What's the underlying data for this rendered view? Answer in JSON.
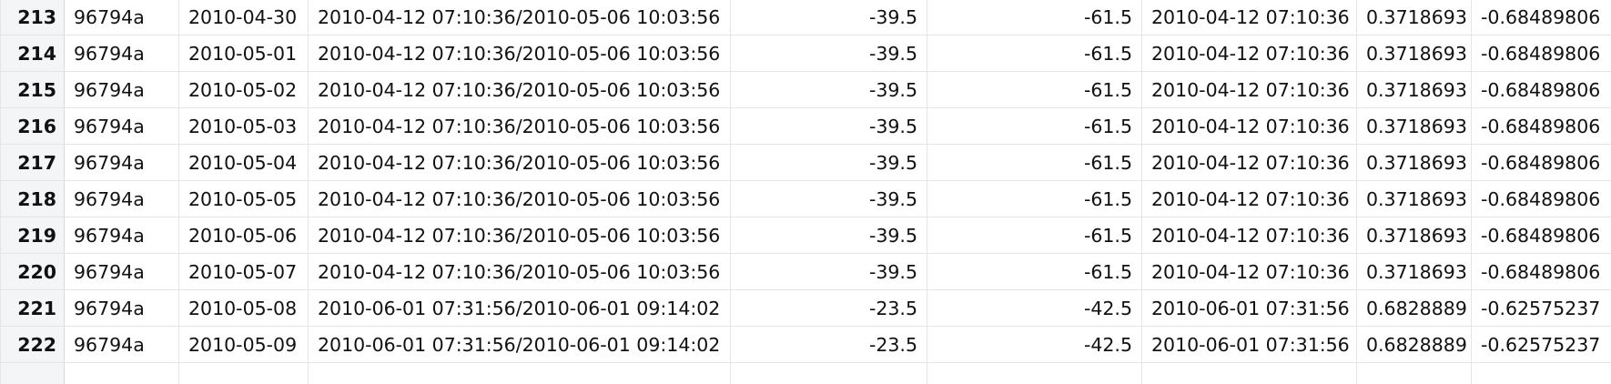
{
  "table": {
    "rows": [
      {
        "row_num": "213",
        "id": "96794a",
        "date": "2010-04-30",
        "interval": "2010-04-12 07:10:36/2010-05-06 10:03:56",
        "value_a": "-39.5",
        "value_b": "-61.5",
        "timestamp": "2010-04-12 07:10:36",
        "coef_a": "0.3718693",
        "coef_b": "-0.68489806"
      },
      {
        "row_num": "214",
        "id": "96794a",
        "date": "2010-05-01",
        "interval": "2010-04-12 07:10:36/2010-05-06 10:03:56",
        "value_a": "-39.5",
        "value_b": "-61.5",
        "timestamp": "2010-04-12 07:10:36",
        "coef_a": "0.3718693",
        "coef_b": "-0.68489806"
      },
      {
        "row_num": "215",
        "id": "96794a",
        "date": "2010-05-02",
        "interval": "2010-04-12 07:10:36/2010-05-06 10:03:56",
        "value_a": "-39.5",
        "value_b": "-61.5",
        "timestamp": "2010-04-12 07:10:36",
        "coef_a": "0.3718693",
        "coef_b": "-0.68489806"
      },
      {
        "row_num": "216",
        "id": "96794a",
        "date": "2010-05-03",
        "interval": "2010-04-12 07:10:36/2010-05-06 10:03:56",
        "value_a": "-39.5",
        "value_b": "-61.5",
        "timestamp": "2010-04-12 07:10:36",
        "coef_a": "0.3718693",
        "coef_b": "-0.68489806"
      },
      {
        "row_num": "217",
        "id": "96794a",
        "date": "2010-05-04",
        "interval": "2010-04-12 07:10:36/2010-05-06 10:03:56",
        "value_a": "-39.5",
        "value_b": "-61.5",
        "timestamp": "2010-04-12 07:10:36",
        "coef_a": "0.3718693",
        "coef_b": "-0.68489806"
      },
      {
        "row_num": "218",
        "id": "96794a",
        "date": "2010-05-05",
        "interval": "2010-04-12 07:10:36/2010-05-06 10:03:56",
        "value_a": "-39.5",
        "value_b": "-61.5",
        "timestamp": "2010-04-12 07:10:36",
        "coef_a": "0.3718693",
        "coef_b": "-0.68489806"
      },
      {
        "row_num": "219",
        "id": "96794a",
        "date": "2010-05-06",
        "interval": "2010-04-12 07:10:36/2010-05-06 10:03:56",
        "value_a": "-39.5",
        "value_b": "-61.5",
        "timestamp": "2010-04-12 07:10:36",
        "coef_a": "0.3718693",
        "coef_b": "-0.68489806"
      },
      {
        "row_num": "220",
        "id": "96794a",
        "date": "2010-05-07",
        "interval": "2010-04-12 07:10:36/2010-05-06 10:03:56",
        "value_a": "-39.5",
        "value_b": "-61.5",
        "timestamp": "2010-04-12 07:10:36",
        "coef_a": "0.3718693",
        "coef_b": "-0.68489806"
      },
      {
        "row_num": "221",
        "id": "96794a",
        "date": "2010-05-08",
        "interval": "2010-06-01 07:31:56/2010-06-01 09:14:02",
        "value_a": "-23.5",
        "value_b": "-42.5",
        "timestamp": "2010-06-01 07:31:56",
        "coef_a": "0.6828889",
        "coef_b": "-0.62575237"
      },
      {
        "row_num": "222",
        "id": "96794a",
        "date": "2010-05-09",
        "interval": "2010-06-01 07:31:56/2010-06-01 09:14:02",
        "value_a": "-23.5",
        "value_b": "-42.5",
        "timestamp": "2010-06-01 07:31:56",
        "coef_a": "0.6828889",
        "coef_b": "-0.62575237"
      }
    ]
  }
}
